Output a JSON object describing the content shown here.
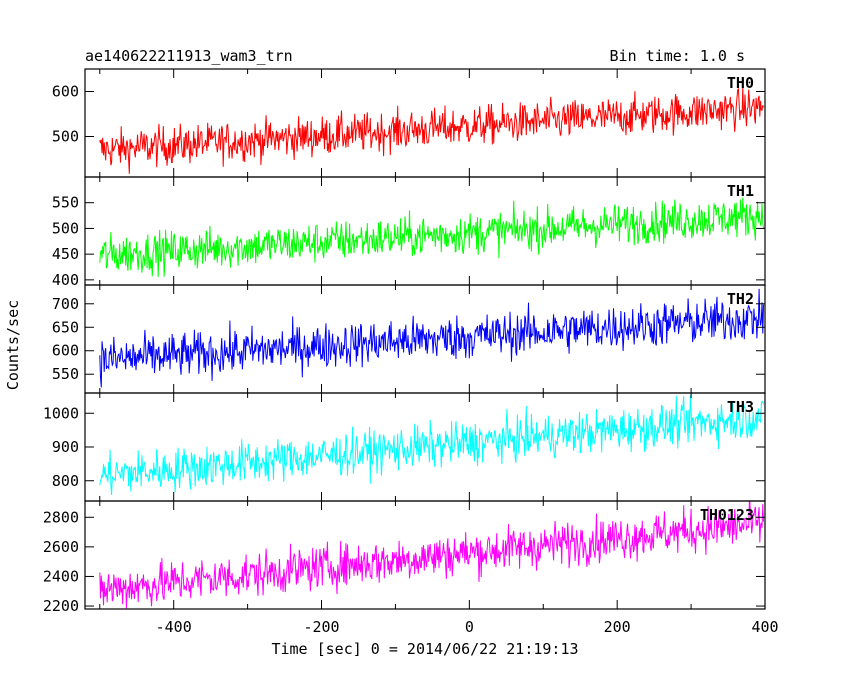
{
  "header": {
    "file_name": "ae140622211913_wam3_trn",
    "bin_time": "Bin time: 1.0 s"
  },
  "chart_data": {
    "type": "line",
    "xlabel": "Time [sec] 0 = 2014/06/22 21:19:13",
    "ylabel": "Counts/sec",
    "xlim": [
      -520,
      400
    ],
    "x_ticks": [
      -400,
      -200,
      0,
      200,
      400
    ],
    "x_range": [
      -500,
      398
    ],
    "bin_time_s": 1.0,
    "panels": [
      {
        "name": "TH0",
        "color": "#ff0000",
        "ylim": [
          410,
          650
        ],
        "y_ticks": [
          500,
          600
        ],
        "start_mean": 470,
        "end_mean": 565,
        "noise": 22
      },
      {
        "name": "TH1",
        "color": "#00ff00",
        "ylim": [
          390,
          600
        ],
        "y_ticks": [
          400,
          450,
          500,
          550
        ],
        "start_mean": 448,
        "end_mean": 525,
        "noise": 20
      },
      {
        "name": "TH2",
        "color": "#0000ff",
        "ylim": [
          510,
          740
        ],
        "y_ticks": [
          550,
          600,
          650,
          700
        ],
        "start_mean": 580,
        "end_mean": 670,
        "noise": 24
      },
      {
        "name": "TH3",
        "color": "#00ffff",
        "ylim": [
          740,
          1060
        ],
        "y_ticks": [
          800,
          900,
          1000
        ],
        "start_mean": 815,
        "end_mean": 990,
        "noise": 32
      },
      {
        "name": "TH0123",
        "color": "#ff00ff",
        "ylim": [
          2180,
          2910
        ],
        "y_ticks": [
          2200,
          2400,
          2600,
          2800
        ],
        "start_mean": 2310,
        "end_mean": 2760,
        "noise": 75
      }
    ]
  }
}
